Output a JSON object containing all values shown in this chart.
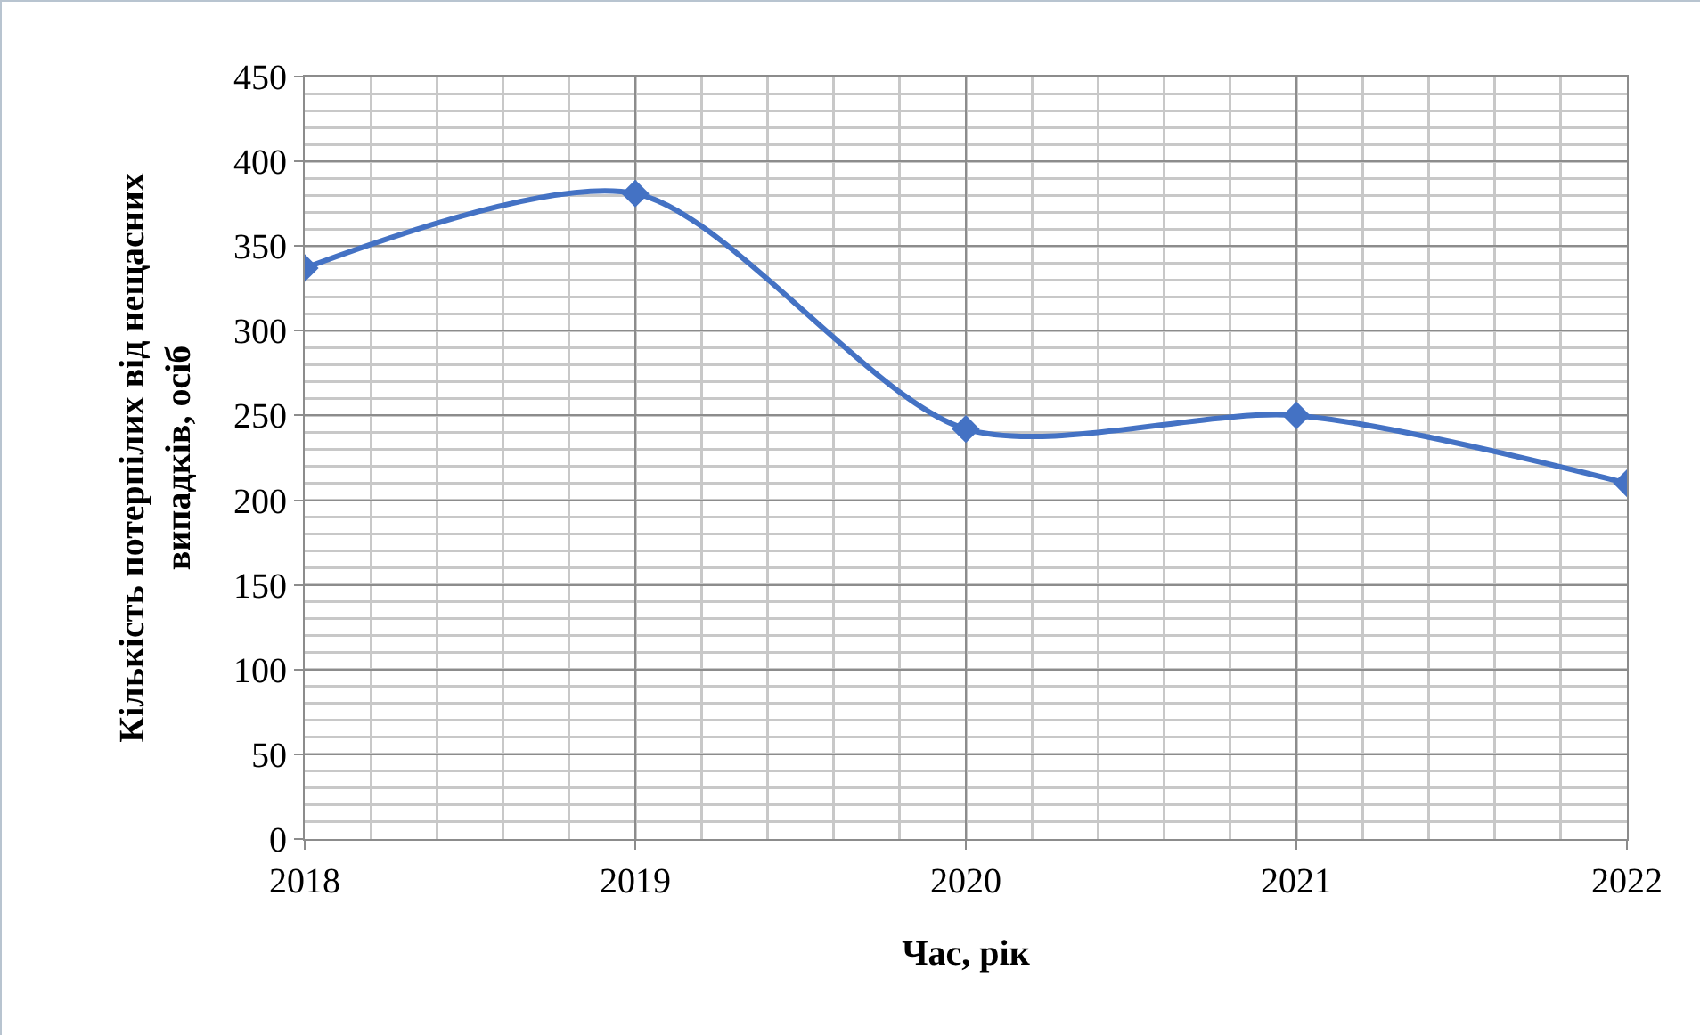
{
  "chart_data": {
    "type": "line",
    "xlabel": "Час, рік",
    "ylabel": "Кількість потерпілих від нещасних випадків, осіб",
    "x": [
      2018,
      2019,
      2020,
      2021,
      2022
    ],
    "series": [
      {
        "color": "#4472c4",
        "values": [
          337,
          381,
          242,
          250,
          210
        ]
      }
    ],
    "xlim": [
      2018,
      2022
    ],
    "xticks": [
      2018,
      2019,
      2020,
      2021,
      2022
    ],
    "ylim": [
      0,
      450
    ],
    "yticks": [
      0,
      50,
      100,
      150,
      200,
      250,
      300,
      350,
      400,
      450
    ],
    "grid": true,
    "marker": "diamond",
    "line_style": "solid"
  }
}
